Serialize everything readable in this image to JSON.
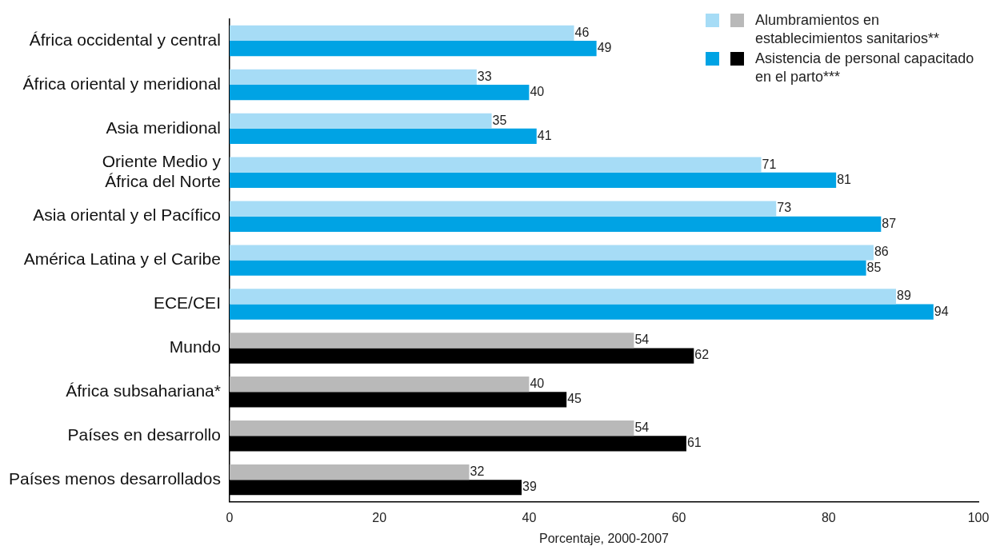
{
  "chart_data": {
    "type": "bar",
    "orientation": "horizontal",
    "xlabel": "Porcentaje, 2000-2007",
    "categories": [
      "África occidental y central",
      "África oriental y meridional",
      "Asia meridional",
      "Oriente Medio y África del Norte",
      "Asia oriental y el Pacífico",
      "América Latina y el Caribe",
      "ECE/CEI",
      "Mundo",
      "África subsahariana*",
      "Países en desarrollo",
      "Países menos desarrollados"
    ],
    "series": [
      {
        "name": "Alumbramientos en establecimientos sanitarios**",
        "colors": [
          "#a6dcf6",
          "#a6dcf6",
          "#a6dcf6",
          "#a6dcf6",
          "#a6dcf6",
          "#a6dcf6",
          "#a6dcf6",
          "#b9b9b9",
          "#b9b9b9",
          "#b9b9b9",
          "#b9b9b9"
        ],
        "values": [
          46,
          33,
          35,
          71,
          73,
          86,
          89,
          54,
          40,
          54,
          32
        ]
      },
      {
        "name": "Asistencia de personal capacitado en el parto***",
        "colors": [
          "#00a3e4",
          "#00a3e4",
          "#00a3e4",
          "#00a3e4",
          "#00a3e4",
          "#00a3e4",
          "#00a3e4",
          "#000000",
          "#000000",
          "#000000",
          "#000000"
        ],
        "values": [
          49,
          40,
          41,
          81,
          87,
          85,
          94,
          62,
          45,
          61,
          39
        ]
      }
    ],
    "xlim": [
      0,
      100
    ],
    "xticks": [
      0,
      20,
      40,
      60,
      80,
      100
    ],
    "grid": false,
    "data_labels": true,
    "legend": "top right"
  }
}
